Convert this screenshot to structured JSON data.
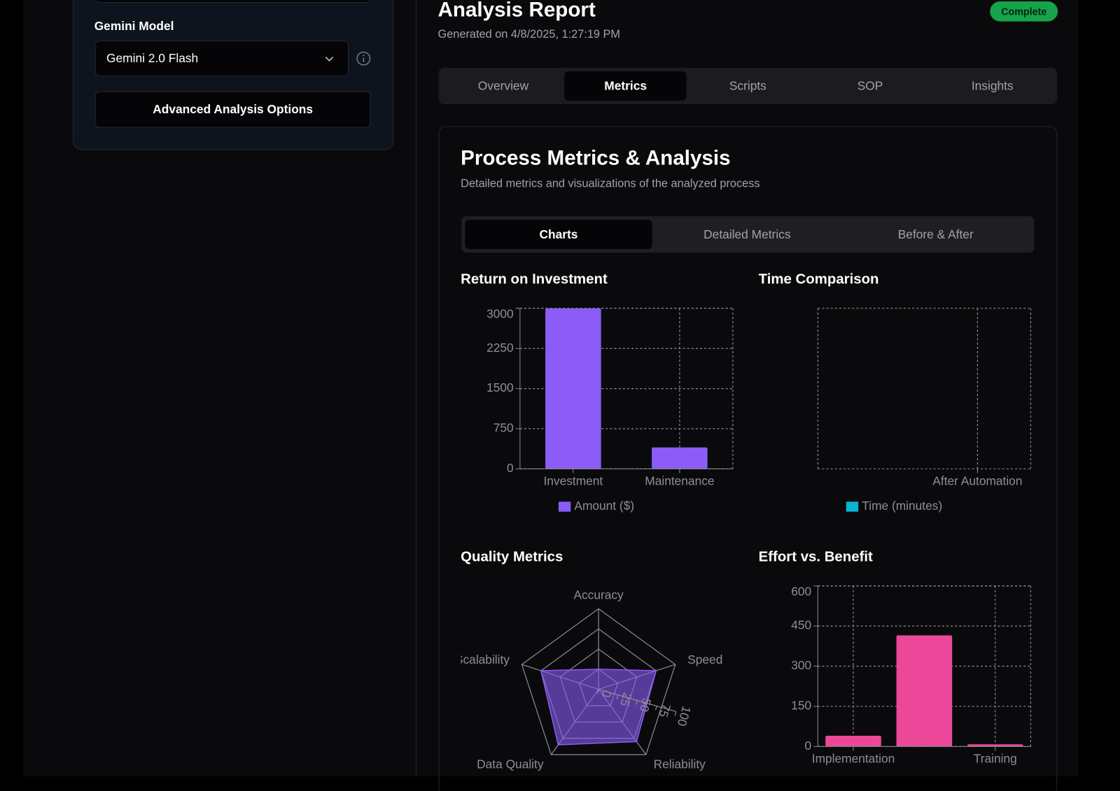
{
  "sidebar": {
    "model_label": "Gemini Model",
    "model_value": "Gemini 2.0 Flash",
    "advanced_button": "Advanced Analysis Options"
  },
  "header": {
    "title": "Analysis Report",
    "generated": "Generated on 4/8/2025, 1:27:19 PM",
    "status": "Complete"
  },
  "tabs": [
    "Overview",
    "Metrics",
    "Scripts",
    "SOP",
    "Insights"
  ],
  "section": {
    "title": "Process Metrics & Analysis",
    "subtitle": "Detailed metrics and visualizations of the analyzed process"
  },
  "subtabs": [
    "Charts",
    "Detailed Metrics",
    "Before & After"
  ],
  "chart_data": [
    {
      "type": "bar",
      "title": "Return on Investment",
      "categories": [
        "Investment",
        "Maintenance"
      ],
      "series": [
        {
          "name": "Amount ($)",
          "color": "#8b5cf6",
          "values": [
            3000,
            400
          ]
        }
      ],
      "ylim": [
        0,
        3000
      ],
      "yticks": [
        0,
        750,
        1500,
        2250,
        3000
      ],
      "grid": true
    },
    {
      "type": "bar",
      "title": "Time Comparison",
      "categories": [
        null,
        "After Automation"
      ],
      "series": [
        {
          "name": "Time (minutes)",
          "color": "#06b6d4",
          "values": [
            null,
            null
          ]
        }
      ],
      "grid": true
    },
    {
      "type": "radar",
      "title": "Quality Metrics",
      "categories": [
        "Accuracy",
        "Speed",
        "Reliability",
        "Data Quality",
        "Scalability"
      ],
      "values": [
        25,
        75,
        80,
        85,
        75
      ],
      "color": "#8b5cf6",
      "rlim": [
        0,
        100
      ],
      "rticks": [
        0,
        25,
        50,
        75,
        100
      ]
    },
    {
      "type": "bar",
      "title": "Effort vs. Benefit",
      "categories": [
        "Implementation",
        null,
        "Training"
      ],
      "values": [
        40,
        415,
        8
      ],
      "color": "#ec4899",
      "ylim": [
        0,
        600
      ],
      "yticks": [
        0,
        150,
        300,
        450,
        600
      ],
      "grid": true
    }
  ]
}
